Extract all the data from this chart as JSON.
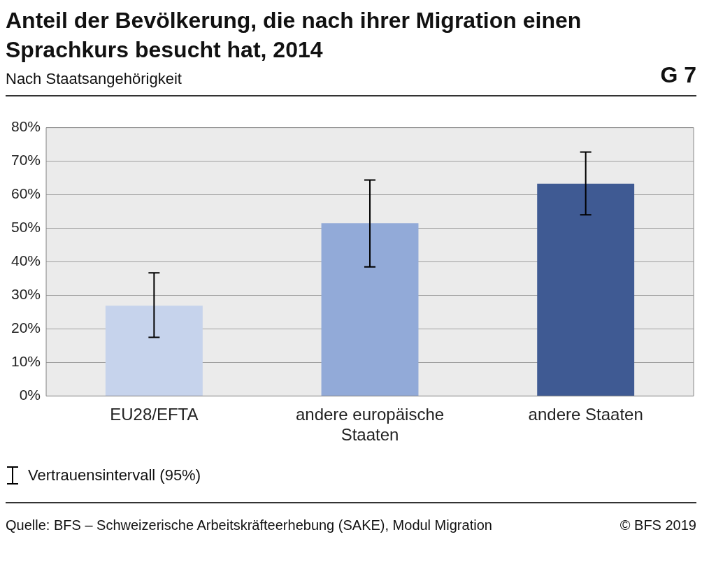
{
  "chart_data": {
    "type": "bar",
    "title": "Anteil der Bevölkerung, die nach ihrer Migration einen Sprachkurs besucht hat, 2014",
    "subtitle": "Nach Staatsangehörigkeit",
    "categories": [
      "EU28/EFTA",
      "andere europäische Staaten",
      "andere Staaten"
    ],
    "values": [
      26.9,
      51.5,
      63.3
    ],
    "colors": [
      "#c6d3ec",
      "#92aad8",
      "#3f5a93"
    ],
    "errors": [
      [
        17.5,
        36.7
      ],
      [
        38.5,
        64.4
      ],
      [
        54,
        72.7
      ]
    ],
    "ylim": [
      0,
      80
    ],
    "yticks": [
      {
        "value": 0,
        "label": "0%"
      },
      {
        "value": 10,
        "label": "10%"
      },
      {
        "value": 20,
        "label": "20%"
      },
      {
        "value": 30,
        "label": "30%"
      },
      {
        "value": 40,
        "label": "40%"
      },
      {
        "value": 50,
        "label": "50%"
      },
      {
        "value": 60,
        "label": "60%"
      },
      {
        "value": 70,
        "label": "70%"
      },
      {
        "value": 80,
        "label": "80%"
      }
    ],
    "grid": "y",
    "annotations": [
      "G 7",
      "Vertrauensintervall (95%)",
      "Quelle: BFS – Schweizerische Arbeitskräfteerhebung (SAKE), Modul Migration",
      "© BFS 2019"
    ]
  }
}
